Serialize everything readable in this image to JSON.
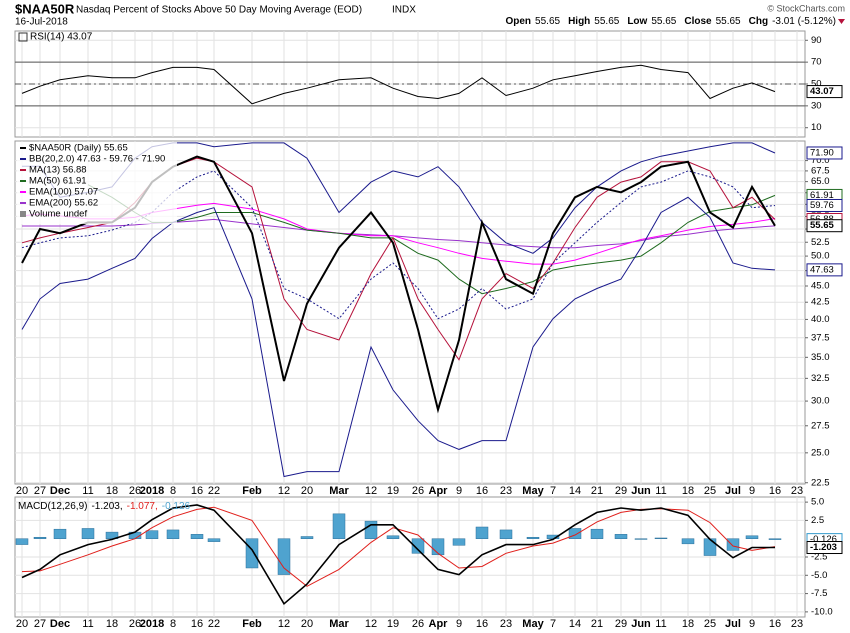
{
  "header": {
    "symbol": "$NAA50R",
    "description": "Nasdaq Percent of Stocks Above 50 Day Moving Average (EOD)",
    "exchange": "INDX",
    "date": "16-Jul-2018",
    "watermark": "© StockCharts.com",
    "quote": [
      {
        "label": "Open",
        "value": "55.65"
      },
      {
        "label": "High",
        "value": "55.65"
      },
      {
        "label": "Low",
        "value": "55.65"
      },
      {
        "label": "Close",
        "value": "55.65"
      },
      {
        "label": "Chg",
        "value": "-3.01 (-5.12%)"
      }
    ]
  },
  "chart_data": [
    {
      "type": "line",
      "title": "RSI(14) 43.07",
      "ylim": [
        1.5,
        98.5
      ],
      "yticks": [
        10,
        30,
        50,
        70,
        90
      ],
      "levels": [
        30,
        50,
        70
      ],
      "grid": true,
      "tags": [
        {
          "value": 43.07,
          "color": "#000000"
        }
      ],
      "series": [
        {
          "color": "#000000",
          "values": [
            41.4,
            48,
            53.8,
            57.6,
            55.7,
            55.7,
            60.4,
            65.2,
            65.2,
            63.3,
            31.9,
            41.4,
            46.2,
            53.8,
            55.7,
            46.2,
            38.6,
            36.7,
            41.4,
            55.7,
            39.5,
            46.2,
            53.8,
            57.6,
            61.4,
            65.2,
            67.1,
            63.3,
            60.4,
            36.7,
            46.2,
            51,
            43.07,
            null
          ]
        }
      ]
    },
    {
      "type": "line",
      "log_scale": true,
      "grid": true,
      "legend": "top-left",
      "extra_legend": "Volume undef",
      "categories": [
        "20",
        "27",
        "Dec",
        "11",
        "18",
        "26",
        "2018",
        "8",
        "16",
        "22",
        "Feb",
        "12",
        "20",
        "Mar",
        "12",
        "19",
        "26",
        "Apr",
        "9",
        "16",
        "23",
        "May",
        "7",
        "14",
        "21",
        "29",
        "Jun",
        "11",
        "18",
        "25",
        "Jul",
        "9",
        "16",
        "23"
      ],
      "ylim": [
        22.4,
        75
      ],
      "yticks": [
        22.5,
        {
          "value": 25,
          "label": "25.0"
        },
        27.5,
        {
          "value": 30,
          "label": "30.0"
        },
        32.5,
        {
          "value": 35,
          "label": "35.0"
        },
        37.5,
        {
          "value": 40,
          "label": "40.0"
        },
        42.5,
        {
          "value": 45,
          "label": "45.0"
        },
        47.5,
        {
          "value": 50,
          "label": "50.0"
        },
        52.5,
        {
          "value": 55,
          "label": "55.0"
        },
        57.5,
        {
          "value": 60,
          "label": "60.0"
        },
        62.5,
        {
          "value": 65,
          "label": "65.0"
        },
        67.5,
        {
          "value": 70,
          "label": "70.0"
        }
      ],
      "tags": [
        {
          "value": 71.9,
          "label": "71.90",
          "color": "#1a1a8c"
        },
        {
          "value": 61.91,
          "color": "#1f6b1f"
        },
        {
          "value": 59.76,
          "color": "#1a1a8c"
        },
        {
          "value": 56.88,
          "color": "#b5123b"
        },
        {
          "value": 55.65,
          "color": "#000000"
        },
        {
          "value": 47.63,
          "color": "#1a1a8c"
        }
      ],
      "series": [
        {
          "name": "$NAA50R (Daily) 55.65",
          "color": "#000000",
          "width": 2,
          "values": [
            48.8,
            55.0,
            54.2,
            56.3,
            56.3,
            59.3,
            64.9,
            68.5,
            71.0,
            69.7,
            54.2,
            32.2,
            42.3,
            51.5,
            58.3,
            52.4,
            38.6,
            29.1,
            37.2,
            56.3,
            46.1,
            43.8,
            54.2,
            61.5,
            63.8,
            62.6,
            64.9,
            68.5,
            69.7,
            58.3,
            55.3,
            63.8,
            55.65,
            null
          ]
        },
        {
          "name": "BB(20,2.0) 47.63 - 59.76 - 71.90",
          "color": "#1a1a8c",
          "dashed": true,
          "values": [
            51.5,
            52.4,
            53.3,
            53.7,
            54.8,
            56.3,
            58.3,
            62.6,
            66.1,
            67.5,
            59.3,
            44.6,
            43.0,
            40.1,
            46.1,
            48.8,
            44.6,
            40.1,
            41.5,
            44.6,
            41.5,
            43.0,
            48.8,
            52.4,
            56.3,
            60.4,
            63.8,
            64.9,
            67.5,
            66.1,
            63.8,
            59.3,
            59.76,
            null
          ]
        },
        {
          "color": "#1a1a8c",
          "values": [
            68.6,
            68.6,
            61.5,
            62.6,
            63.8,
            70.6,
            73.5,
            74.5,
            74.5,
            73.5,
            74.5,
            74.5,
            70.6,
            58.3,
            64.9,
            67.5,
            66.1,
            68.5,
            63.8,
            56.3,
            52.4,
            50.5,
            53.3,
            59.3,
            63.8,
            67.5,
            69.7,
            71.1,
            72.4,
            73.5,
            74.5,
            74.5,
            71.9,
            null
          ]
        },
        {
          "color": "#1a1a8c",
          "values": [
            38.6,
            43.0,
            45.4,
            46.1,
            47.9,
            49.6,
            53.2,
            56.3,
            58.3,
            59.3,
            43.0,
            23.0,
            23.4,
            23.4,
            36.3,
            31.2,
            28.0,
            26.1,
            25.3,
            26.1,
            26.1,
            36.3,
            40.1,
            43.0,
            44.6,
            46.1,
            51.5,
            58.3,
            61.5,
            57.3,
            48.8,
            47.9,
            47.63,
            null
          ]
        },
        {
          "name": "MA(13) 56.88",
          "color": "#b5123b",
          "values": [
            52.4,
            53.3,
            54.2,
            55.3,
            56.3,
            60.4,
            64.9,
            68.5,
            70.6,
            69.7,
            63.8,
            43.0,
            38.6,
            37.2,
            47.0,
            53.3,
            43.0,
            38.6,
            34.7,
            43.0,
            47.0,
            44.6,
            48.8,
            55.3,
            61.5,
            64.9,
            66.1,
            69.7,
            69.7,
            67.5,
            59.3,
            61.5,
            56.88,
            null
          ]
        },
        {
          "name": "MA(50) 61.91",
          "color": "#1f6b1f",
          "values": [
            null,
            null,
            null,
            64.3,
            61.5,
            58.3,
            56.3,
            56.3,
            57.3,
            58.3,
            58.3,
            56.3,
            54.8,
            54.2,
            53.3,
            53.3,
            50.5,
            49.3,
            46.1,
            43.8,
            44.6,
            45.7,
            47.6,
            48.3,
            48.8,
            49.3,
            50.0,
            52.4,
            56.3,
            58.5,
            59.3,
            59.9,
            61.91,
            null
          ]
        },
        {
          "name": "EMA(100) 57.07",
          "color": "#ff00ff",
          "values": [
            57.6,
            58.0,
            57.6,
            57.0,
            57.0,
            57.3,
            58.3,
            59.0,
            59.8,
            60.2,
            59.0,
            57.0,
            55.0,
            54.2,
            53.7,
            53.7,
            52.4,
            51.5,
            50.5,
            49.6,
            49.1,
            48.6,
            48.6,
            49.3,
            50.5,
            51.9,
            53.0,
            53.7,
            54.8,
            55.5,
            55.9,
            56.3,
            57.07,
            null
          ]
        },
        {
          "name": "EMA(200) 55.62",
          "color": "#9933cc",
          "values": [
            55.6,
            55.6,
            55.6,
            55.6,
            55.6,
            55.8,
            56.1,
            56.3,
            56.6,
            56.9,
            56.0,
            55.3,
            54.8,
            54.2,
            53.9,
            53.7,
            53.3,
            53.0,
            52.8,
            52.4,
            52.0,
            51.7,
            51.5,
            51.5,
            51.9,
            52.2,
            52.8,
            53.5,
            54.0,
            54.6,
            55.0,
            55.3,
            55.62,
            null
          ]
        }
      ]
    },
    {
      "type": "combo",
      "title": "MACD(12,26,9)",
      "grid": true,
      "categories": [
        "20",
        "27",
        "Dec",
        "11",
        "18",
        "26",
        "2018",
        "8",
        "16",
        "22",
        "Feb",
        "12",
        "20",
        "Mar",
        "12",
        "19",
        "26",
        "Apr",
        "9",
        "16",
        "23",
        "May",
        "7",
        "14",
        "21",
        "29",
        "Jun",
        "11",
        "18",
        "25",
        "Jul",
        "9",
        "16",
        "23"
      ],
      "ylim": [
        -10.7,
        5.7
      ],
      "yticks": [
        {
          "value": 5,
          "label": "5.0"
        },
        2.5,
        -2.5,
        {
          "value": -5,
          "label": "-5.0"
        },
        -7.5,
        {
          "value": -10,
          "label": "-10.0"
        }
      ],
      "tags": [
        {
          "value": -0.126,
          "color": "#3399cc"
        },
        {
          "value": -1.203,
          "color": "#000000"
        }
      ],
      "series": [
        {
          "name": "-0.126",
          "type": "bar",
          "color": "#4fa3cf",
          "values": [
            -0.8,
            0.2,
            1.3,
            1.4,
            0.9,
            0.9,
            1.1,
            1.2,
            0.6,
            -0.4,
            -4.0,
            -4.9,
            0.3,
            3.4,
            2.4,
            0.4,
            -2.0,
            -2.2,
            -0.9,
            1.6,
            1.2,
            0.2,
            0.5,
            1.4,
            1.3,
            0.6,
            -0.1,
            0.1,
            -0.7,
            -2.3,
            -1.6,
            0.4,
            -0.126,
            null
          ]
        },
        {
          "name": "-1.077,",
          "type": "line",
          "color": "#e0201c",
          "values": [
            -4.5,
            -4.4,
            -3.5,
            -2.2,
            -1.0,
            0.0,
            1.5,
            3.0,
            4.0,
            4.3,
            2.5,
            -4.0,
            -6.5,
            -4.2,
            -0.5,
            1.5,
            0.5,
            -2.0,
            -4.0,
            -3.8,
            -2.0,
            -1.0,
            -0.6,
            0.5,
            2.3,
            3.6,
            4.0,
            4.1,
            3.9,
            2.2,
            -1.0,
            -1.6,
            -1.077,
            null
          ]
        },
        {
          "name": "-1.203,",
          "type": "line",
          "color": "#000000",
          "width": 1.6,
          "values": [
            -5.3,
            -4.2,
            -2.2,
            -0.8,
            -0.1,
            0.9,
            2.6,
            4.2,
            4.6,
            3.9,
            -1.5,
            -8.9,
            -6.2,
            -0.8,
            1.9,
            1.9,
            -1.5,
            -4.2,
            -4.9,
            -2.2,
            -0.8,
            -0.8,
            -0.1,
            1.9,
            3.6,
            4.2,
            3.9,
            4.2,
            3.2,
            -0.1,
            -2.6,
            -1.2,
            -1.203,
            null
          ]
        }
      ]
    }
  ]
}
